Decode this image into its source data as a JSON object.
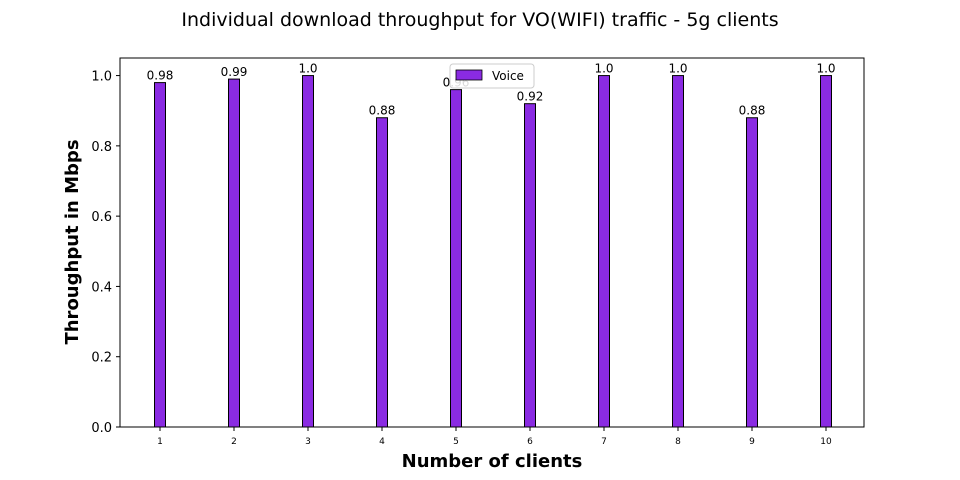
{
  "chart_data": {
    "type": "bar",
    "title": "Individual download throughput for VO(WIFI) traffic - 5g clients",
    "xlabel": "Number of clients",
    "ylabel": "Throughput in Mbps",
    "categories": [
      "1",
      "2",
      "3",
      "4",
      "5",
      "6",
      "7",
      "8",
      "9",
      "10"
    ],
    "series": [
      {
        "name": "Voice",
        "values": [
          0.98,
          0.99,
          1.0,
          0.88,
          0.96,
          0.92,
          1.0,
          1.0,
          0.88,
          1.0
        ],
        "labels": [
          "0.98",
          "0.99",
          "1.0",
          "0.88",
          "0.96",
          "0.92",
          "1.0",
          "1.0",
          "0.88",
          "1.0"
        ],
        "color": "#8a2be2"
      }
    ],
    "ylim": [
      0,
      1.05
    ],
    "yticks": [
      "0.0",
      "0.2",
      "0.4",
      "0.6",
      "0.8",
      "1.0"
    ],
    "grid": false,
    "legend_position": "top-center"
  }
}
